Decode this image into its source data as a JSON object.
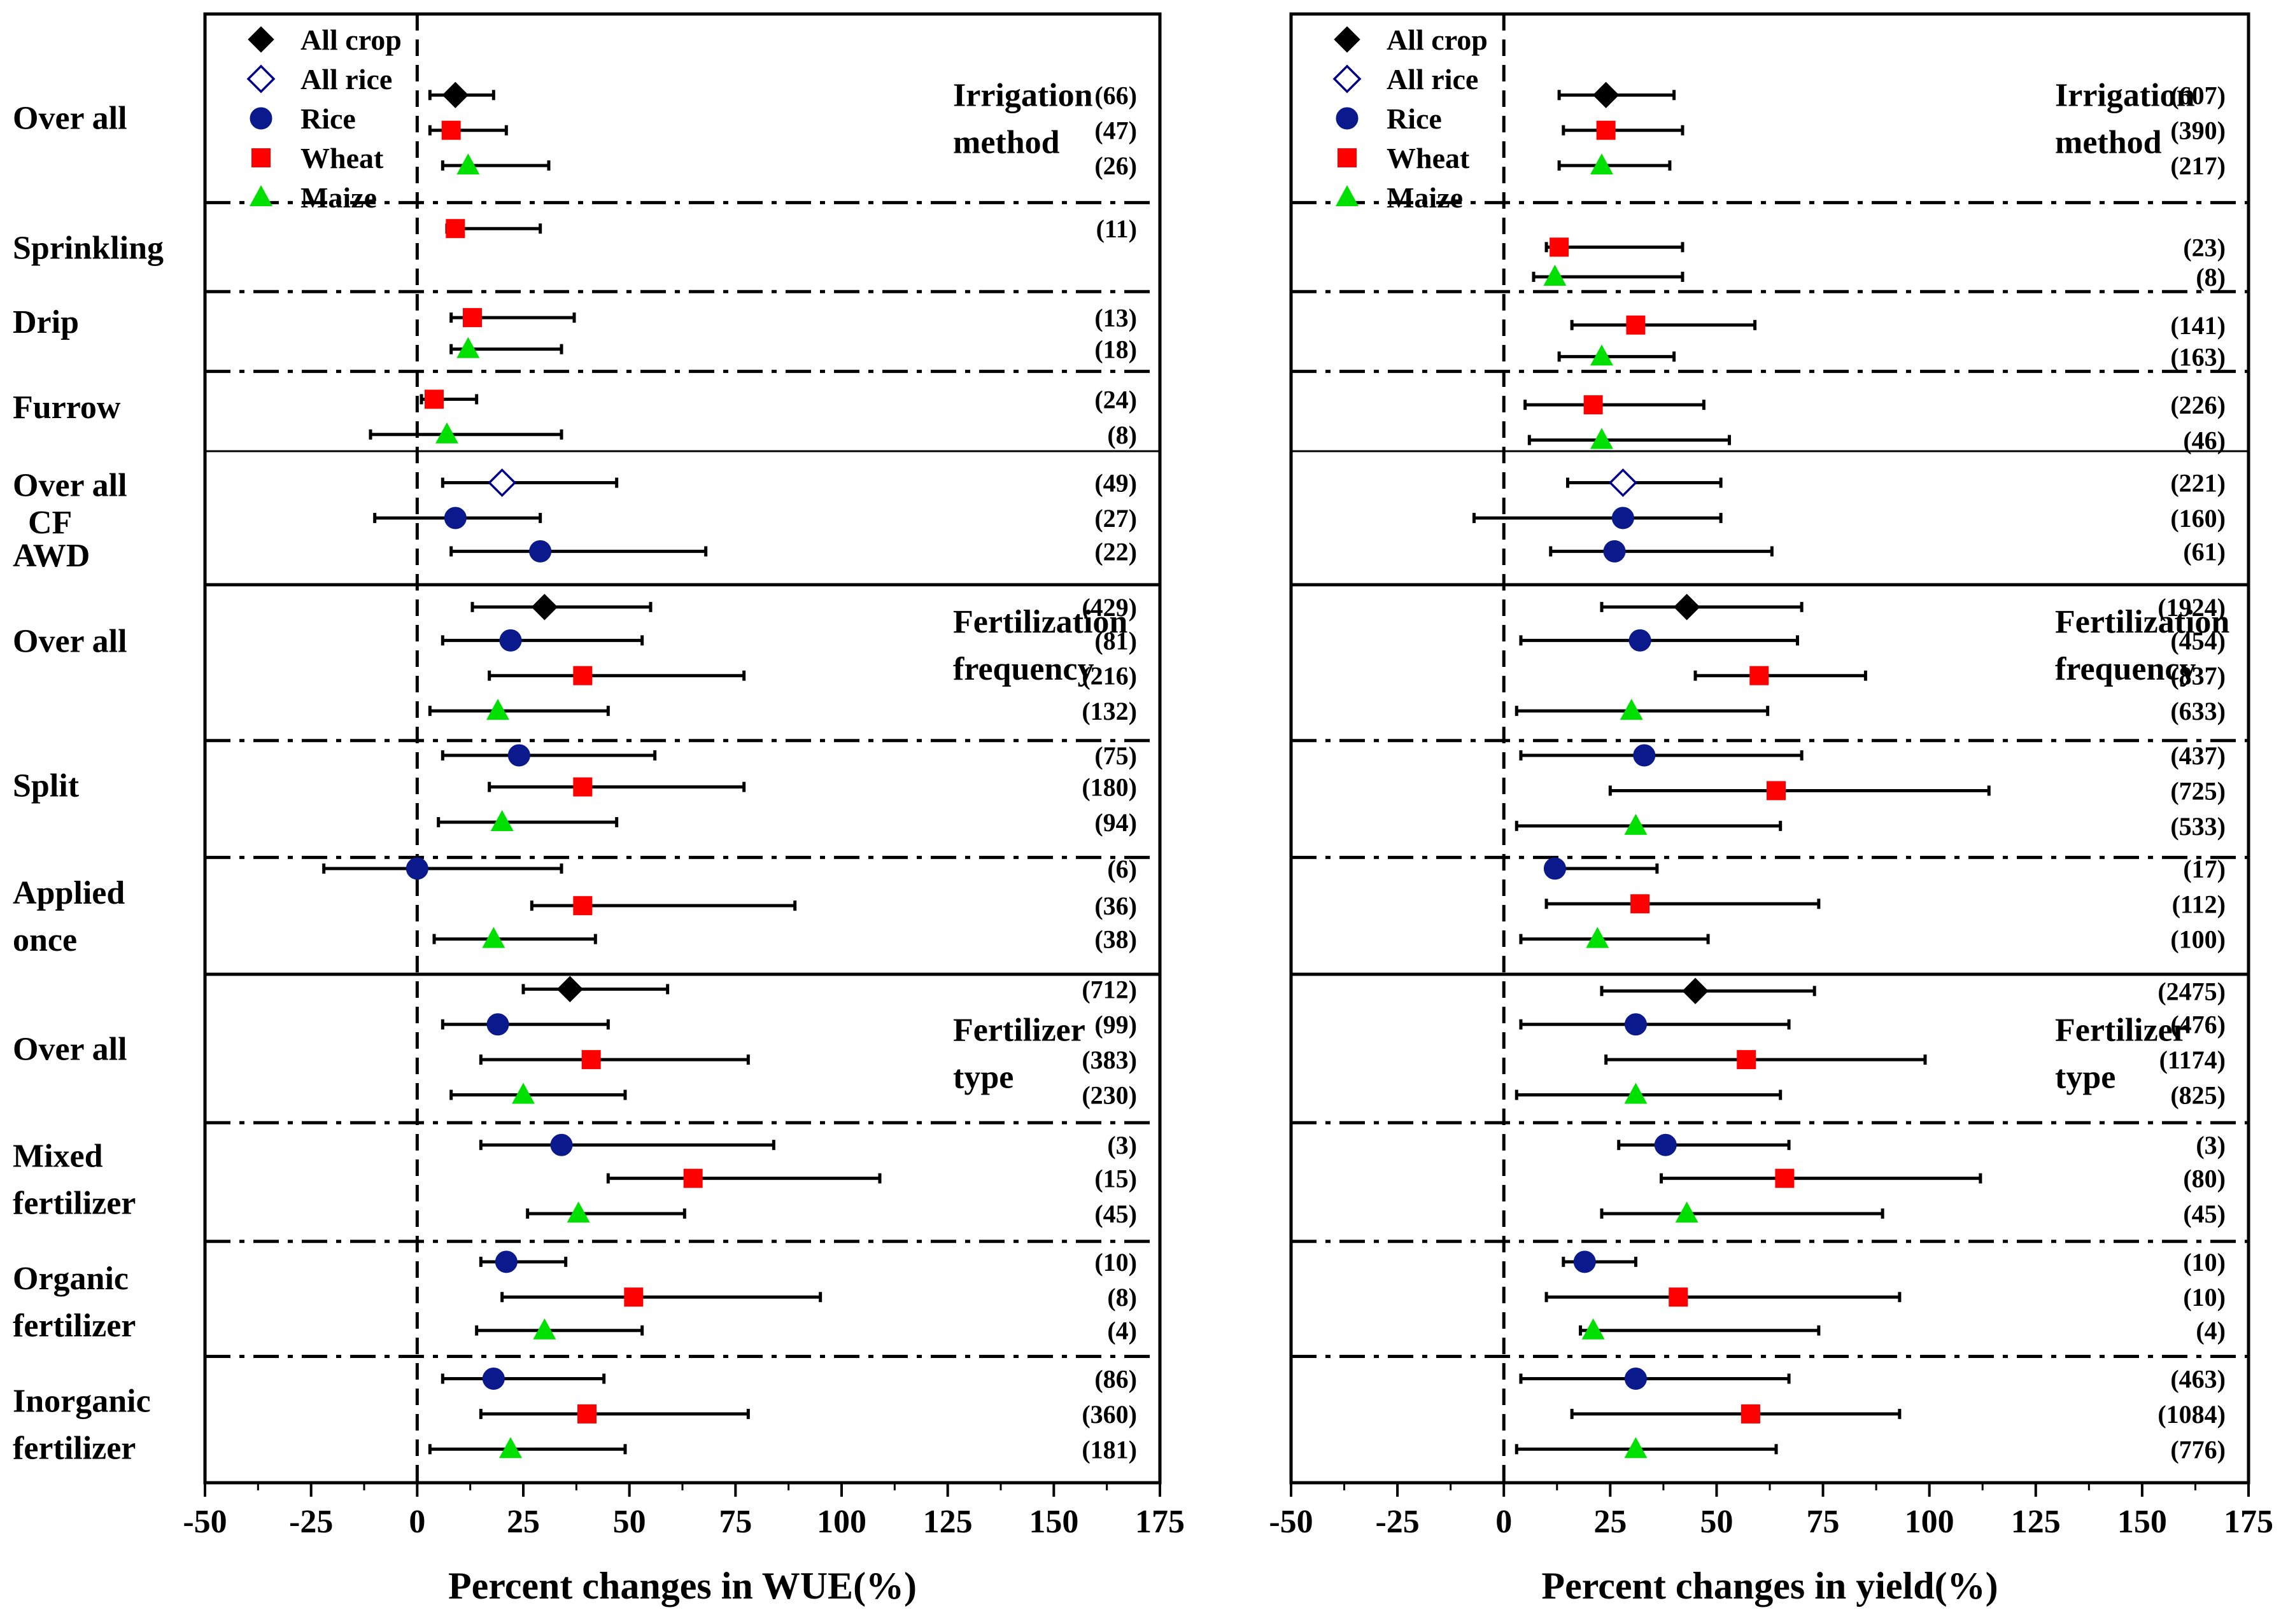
{
  "legend": [
    {
      "name": "All crop",
      "marker": "diamond-filled",
      "color": "#000000"
    },
    {
      "name": "All rice",
      "marker": "diamond-open",
      "color": "#00008B"
    },
    {
      "name": "Rice",
      "marker": "circle",
      "color": "#0A1A8C"
    },
    {
      "name": "Wheat",
      "marker": "square",
      "color": "#FF0000"
    },
    {
      "name": "Maize",
      "marker": "triangle",
      "color": "#00E000"
    }
  ],
  "row_labels": [
    {
      "lines": [
        "Over all"
      ],
      "y": 1
    },
    {
      "lines": [
        "Sprinkling"
      ],
      "y": 4.5
    },
    {
      "lines": [
        "Drip"
      ],
      "y": 6.5
    },
    {
      "lines": [
        "Furrow"
      ],
      "y": 8.8
    },
    {
      "lines": [
        "Over all"
      ],
      "y": 10.9
    },
    {
      "lines": [
        "CF"
      ],
      "y": 11.9
    },
    {
      "lines": [
        "AWD"
      ],
      "y": 12.8
    },
    {
      "lines": [
        "Over all"
      ],
      "y": 15.1
    },
    {
      "lines": [
        "Split"
      ],
      "y": 19
    },
    {
      "lines": [
        "Applied",
        "once"
      ],
      "y": 22.5
    },
    {
      "lines": [
        "Over all"
      ],
      "y": 26.1
    },
    {
      "lines": [
        "Mixed",
        "fertilizer"
      ],
      "y": 29.6
    },
    {
      "lines": [
        "Organic",
        "fertilizer"
      ],
      "y": 32.9
    },
    {
      "lines": [
        "Inorganic",
        "fertilizer"
      ],
      "y": 36.2
    }
  ],
  "separators": [
    {
      "y": 3.3,
      "style": "dashdot"
    },
    {
      "y": 5.7,
      "style": "dashdot"
    },
    {
      "y": 7.85,
      "style": "dashdot"
    },
    {
      "y": 10.0,
      "style": "solid-thin"
    },
    {
      "y": 13.6,
      "style": "solid"
    },
    {
      "y": 17.8,
      "style": "dashdot"
    },
    {
      "y": 20.95,
      "style": "dashdot"
    },
    {
      "y": 24.1,
      "style": "solid"
    },
    {
      "y": 28.1,
      "style": "dashdot"
    },
    {
      "y": 31.3,
      "style": "dashdot"
    },
    {
      "y": 34.4,
      "style": "dashdot"
    }
  ],
  "group_titles": [
    {
      "lines": [
        "Irrigation",
        "method"
      ],
      "y": 1
    },
    {
      "lines": [
        "Fertilization",
        "frequency"
      ],
      "y": 15.2
    },
    {
      "lines": [
        "Fertilizer",
        "type"
      ],
      "y": 26.2
    }
  ],
  "chart_data": [
    {
      "type": "forest",
      "xlabel": "Percent changes in WUE(%)",
      "xlim": [
        -50,
        175
      ],
      "xticks": [
        -50,
        -25,
        0,
        25,
        50,
        75,
        100,
        125,
        150,
        175
      ],
      "points": [
        {
          "y": 0.4,
          "crop": "All crop",
          "mean": 9,
          "low": 3,
          "high": 18,
          "n": "(66)"
        },
        {
          "y": 1.35,
          "crop": "Wheat",
          "mean": 8,
          "low": 3,
          "high": 21,
          "n": "(47)"
        },
        {
          "y": 2.3,
          "crop": "Maize",
          "mean": 12,
          "low": 6,
          "high": 31,
          "n": "(26)"
        },
        {
          "y": 4.0,
          "crop": "Wheat",
          "mean": 9,
          "low": 7,
          "high": 29,
          "n": "(11)"
        },
        {
          "y": 6.4,
          "crop": "Wheat",
          "mean": 13,
          "low": 8,
          "high": 37,
          "n": "(13)"
        },
        {
          "y": 7.25,
          "crop": "Maize",
          "mean": 12,
          "low": 8,
          "high": 34,
          "n": "(18)"
        },
        {
          "y": 8.6,
          "crop": "Wheat",
          "mean": 4,
          "low": 1,
          "high": 14,
          "n": "(24)"
        },
        {
          "y": 9.55,
          "crop": "Maize",
          "mean": 7,
          "low": -11,
          "high": 34,
          "n": "(8)"
        },
        {
          "y": 10.85,
          "crop": "All rice",
          "mean": 20,
          "low": 6,
          "high": 47,
          "n": "(49)"
        },
        {
          "y": 11.8,
          "crop": "Rice",
          "mean": 9,
          "low": -10,
          "high": 29,
          "n": "(27)"
        },
        {
          "y": 12.7,
          "crop": "Rice",
          "mean": 29,
          "low": 8,
          "high": 68,
          "n": "(22)"
        },
        {
          "y": 14.2,
          "crop": "All crop",
          "mean": 30,
          "low": 13,
          "high": 55,
          "n": "(429)"
        },
        {
          "y": 15.1,
          "crop": "Rice",
          "mean": 22,
          "low": 6,
          "high": 53,
          "n": "(81)"
        },
        {
          "y": 16.05,
          "crop": "Wheat",
          "mean": 39,
          "low": 17,
          "high": 77,
          "n": "(216)"
        },
        {
          "y": 17.0,
          "crop": "Maize",
          "mean": 19,
          "low": 3,
          "high": 45,
          "n": "(132)"
        },
        {
          "y": 18.2,
          "crop": "Rice",
          "mean": 24,
          "low": 6,
          "high": 56,
          "n": "(75)"
        },
        {
          "y": 19.05,
          "crop": "Wheat",
          "mean": 39,
          "low": 17,
          "high": 77,
          "n": "(180)"
        },
        {
          "y": 20.0,
          "crop": "Maize",
          "mean": 20,
          "low": 5,
          "high": 47,
          "n": "(94)"
        },
        {
          "y": 21.25,
          "crop": "Rice",
          "mean": 0,
          "low": -22,
          "high": 34,
          "n": "(6)"
        },
        {
          "y": 22.25,
          "crop": "Wheat",
          "mean": 39,
          "low": 27,
          "high": 89,
          "n": "(36)"
        },
        {
          "y": 23.15,
          "crop": "Maize",
          "mean": 18,
          "low": 4,
          "high": 42,
          "n": "(38)"
        },
        {
          "y": 24.5,
          "crop": "All crop",
          "mean": 36,
          "low": 25,
          "high": 59,
          "n": "(712)"
        },
        {
          "y": 25.45,
          "crop": "Rice",
          "mean": 19,
          "low": 6,
          "high": 45,
          "n": "(99)"
        },
        {
          "y": 26.4,
          "crop": "Wheat",
          "mean": 41,
          "low": 15,
          "high": 78,
          "n": "(383)"
        },
        {
          "y": 27.35,
          "crop": "Maize",
          "mean": 25,
          "low": 8,
          "high": 49,
          "n": "(230)"
        },
        {
          "y": 28.7,
          "crop": "Rice",
          "mean": 34,
          "low": 15,
          "high": 84,
          "n": "(3)"
        },
        {
          "y": 29.6,
          "crop": "Wheat",
          "mean": 65,
          "low": 45,
          "high": 109,
          "n": "(15)"
        },
        {
          "y": 30.55,
          "crop": "Maize",
          "mean": 38,
          "low": 26,
          "high": 63,
          "n": "(45)"
        },
        {
          "y": 31.85,
          "crop": "Rice",
          "mean": 21,
          "low": 15,
          "high": 35,
          "n": "(10)"
        },
        {
          "y": 32.8,
          "crop": "Wheat",
          "mean": 51,
          "low": 20,
          "high": 95,
          "n": "(8)"
        },
        {
          "y": 33.7,
          "crop": "Maize",
          "mean": 30,
          "low": 14,
          "high": 53,
          "n": "(4)"
        },
        {
          "y": 35.0,
          "crop": "Rice",
          "mean": 18,
          "low": 6,
          "high": 44,
          "n": "(86)"
        },
        {
          "y": 35.95,
          "crop": "Wheat",
          "mean": 40,
          "low": 15,
          "high": 78,
          "n": "(360)"
        },
        {
          "y": 36.9,
          "crop": "Maize",
          "mean": 22,
          "low": 3,
          "high": 49,
          "n": "(181)"
        }
      ]
    },
    {
      "type": "forest",
      "xlabel": "Percent changes in yield(%)",
      "xlim": [
        -50,
        175
      ],
      "xticks": [
        -50,
        -25,
        0,
        25,
        50,
        75,
        100,
        125,
        150,
        175
      ],
      "points": [
        {
          "y": 0.4,
          "crop": "All crop",
          "mean": 24,
          "low": 13,
          "high": 40,
          "n": "(607)"
        },
        {
          "y": 1.35,
          "crop": "Wheat",
          "mean": 24,
          "low": 14,
          "high": 42,
          "n": "(390)"
        },
        {
          "y": 2.3,
          "crop": "Maize",
          "mean": 23,
          "low": 13,
          "high": 39,
          "n": "(217)"
        },
        {
          "y": 4.5,
          "crop": "Wheat",
          "mean": 13,
          "low": 10,
          "high": 42,
          "n": "(23)"
        },
        {
          "y": 5.3,
          "crop": "Maize",
          "mean": 12,
          "low": 7,
          "high": 42,
          "n": "(8)"
        },
        {
          "y": 6.6,
          "crop": "Wheat",
          "mean": 31,
          "low": 16,
          "high": 59,
          "n": "(141)"
        },
        {
          "y": 7.45,
          "crop": "Maize",
          "mean": 23,
          "low": 13,
          "high": 40,
          "n": "(163)"
        },
        {
          "y": 8.75,
          "crop": "Wheat",
          "mean": 21,
          "low": 5,
          "high": 47,
          "n": "(226)"
        },
        {
          "y": 9.7,
          "crop": "Maize",
          "mean": 23,
          "low": 6,
          "high": 53,
          "n": "(46)"
        },
        {
          "y": 10.85,
          "crop": "All rice",
          "mean": 28,
          "low": 15,
          "high": 51,
          "n": "(221)"
        },
        {
          "y": 11.8,
          "crop": "Rice",
          "mean": 28,
          "low": -7,
          "high": 51,
          "n": "(160)"
        },
        {
          "y": 12.7,
          "crop": "Rice",
          "mean": 26,
          "low": 11,
          "high": 63,
          "n": "(61)"
        },
        {
          "y": 14.2,
          "crop": "All crop",
          "mean": 43,
          "low": 23,
          "high": 70,
          "n": "(1924)"
        },
        {
          "y": 15.1,
          "crop": "Rice",
          "mean": 32,
          "low": 4,
          "high": 69,
          "n": "(454)"
        },
        {
          "y": 16.05,
          "crop": "Wheat",
          "mean": 60,
          "low": 45,
          "high": 85,
          "n": "(837)"
        },
        {
          "y": 17.0,
          "crop": "Maize",
          "mean": 30,
          "low": 3,
          "high": 62,
          "n": "(633)"
        },
        {
          "y": 18.2,
          "crop": "Rice",
          "mean": 33,
          "low": 4,
          "high": 70,
          "n": "(437)"
        },
        {
          "y": 19.15,
          "crop": "Wheat",
          "mean": 64,
          "low": 25,
          "high": 114,
          "n": "(725)"
        },
        {
          "y": 20.1,
          "crop": "Maize",
          "mean": 31,
          "low": 3,
          "high": 65,
          "n": "(533)"
        },
        {
          "y": 21.25,
          "crop": "Rice",
          "mean": 12,
          "low": 11,
          "high": 36,
          "n": "(17)"
        },
        {
          "y": 22.2,
          "crop": "Wheat",
          "mean": 32,
          "low": 10,
          "high": 74,
          "n": "(112)"
        },
        {
          "y": 23.15,
          "crop": "Maize",
          "mean": 22,
          "low": 4,
          "high": 48,
          "n": "(100)"
        },
        {
          "y": 24.55,
          "crop": "All crop",
          "mean": 45,
          "low": 23,
          "high": 73,
          "n": "(2475)"
        },
        {
          "y": 25.45,
          "crop": "Rice",
          "mean": 31,
          "low": 4,
          "high": 67,
          "n": "(476)"
        },
        {
          "y": 26.4,
          "crop": "Wheat",
          "mean": 57,
          "low": 24,
          "high": 99,
          "n": "(1174)"
        },
        {
          "y": 27.35,
          "crop": "Maize",
          "mean": 31,
          "low": 3,
          "high": 65,
          "n": "(825)"
        },
        {
          "y": 28.7,
          "crop": "Rice",
          "mean": 38,
          "low": 27,
          "high": 67,
          "n": "(3)"
        },
        {
          "y": 29.6,
          "crop": "Wheat",
          "mean": 66,
          "low": 37,
          "high": 112,
          "n": "(80)"
        },
        {
          "y": 30.55,
          "crop": "Maize",
          "mean": 43,
          "low": 23,
          "high": 89,
          "n": "(45)"
        },
        {
          "y": 31.85,
          "crop": "Rice",
          "mean": 19,
          "low": 14,
          "high": 31,
          "n": "(10)"
        },
        {
          "y": 32.8,
          "crop": "Wheat",
          "mean": 41,
          "low": 10,
          "high": 93,
          "n": "(10)"
        },
        {
          "y": 33.7,
          "crop": "Maize",
          "mean": 21,
          "low": 18,
          "high": 74,
          "n": "(4)"
        },
        {
          "y": 35.0,
          "crop": "Rice",
          "mean": 31,
          "low": 4,
          "high": 67,
          "n": "(463)"
        },
        {
          "y": 35.95,
          "crop": "Wheat",
          "mean": 58,
          "low": 16,
          "high": 93,
          "n": "(1084)"
        },
        {
          "y": 36.9,
          "crop": "Maize",
          "mean": 31,
          "low": 3,
          "high": 64,
          "n": "(776)"
        }
      ]
    }
  ]
}
